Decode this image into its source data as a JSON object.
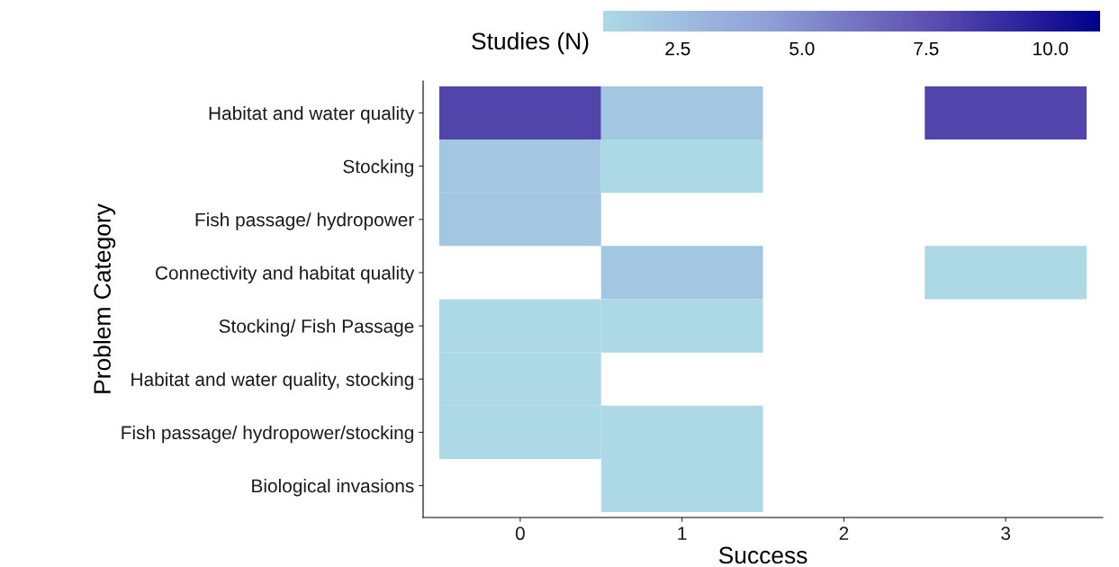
{
  "chart_data": {
    "type": "heatmap",
    "xlabel": "Success",
    "ylabel": "Problem Category",
    "clabel": "Studies (N)",
    "categories": [
      "0",
      "1",
      "2",
      "3"
    ],
    "y_categories": [
      "Habitat and water quality",
      "Stocking",
      "Fish passage/ hydropower",
      "Connectivity and habitat quality",
      "Stocking/ Fish Passage",
      "Habitat and water quality, stocking",
      "Fish passage/ hydropower/stocking",
      "Biological invasions"
    ],
    "cells": [
      [
        8,
        2,
        null,
        8
      ],
      [
        2,
        1,
        null,
        null
      ],
      [
        2,
        null,
        null,
        null
      ],
      [
        null,
        2,
        null,
        1
      ],
      [
        1,
        1,
        null,
        null
      ],
      [
        1,
        null,
        null,
        null
      ],
      [
        1,
        1,
        null,
        null
      ],
      [
        null,
        1,
        null,
        null
      ]
    ],
    "clim": [
      1,
      11
    ],
    "cticks": [
      2.5,
      {
        "value": 5,
        "label": "5.0"
      },
      7.5,
      {
        "value": 10,
        "label": "10.0"
      }
    ]
  }
}
